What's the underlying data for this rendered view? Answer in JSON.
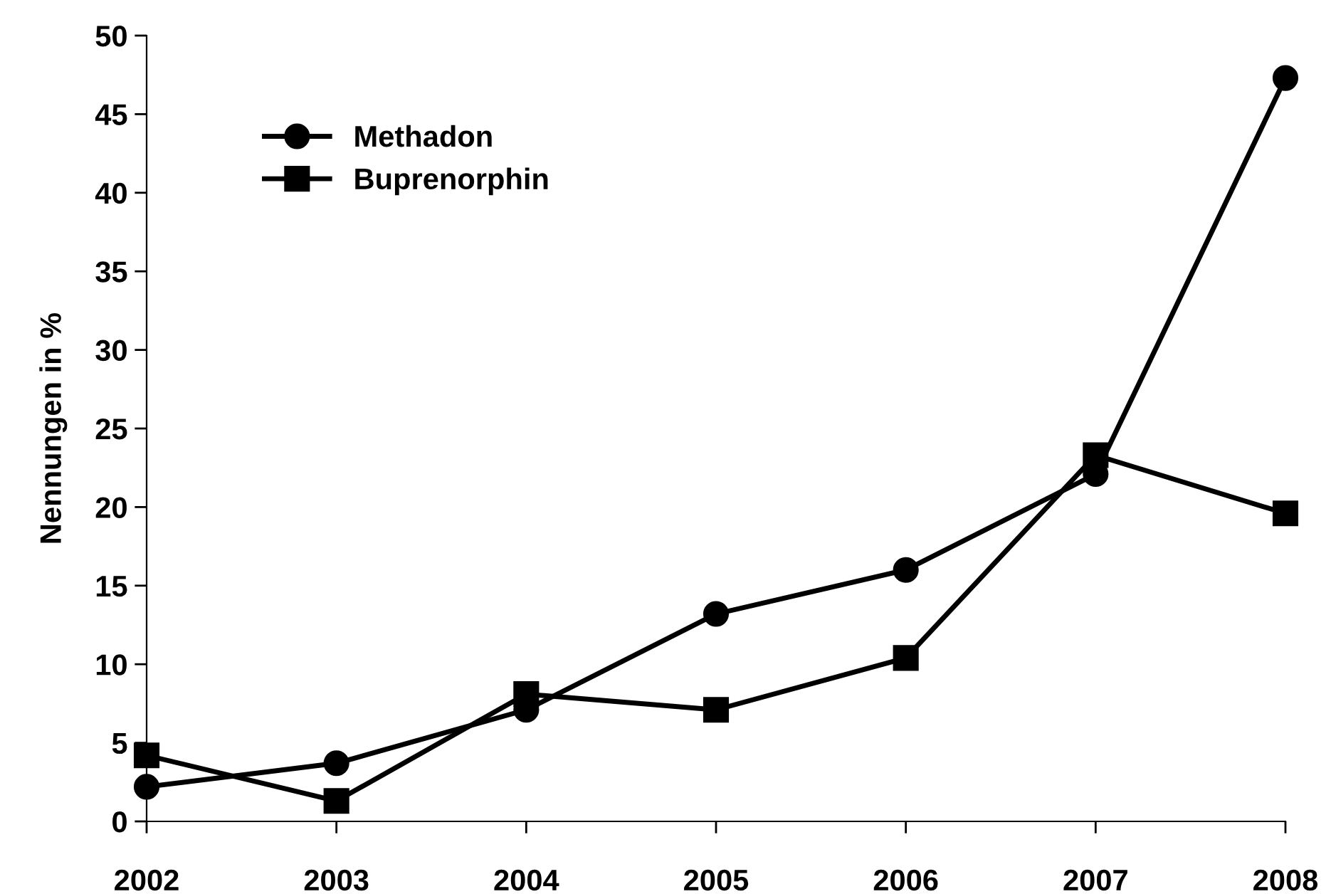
{
  "chart_data": {
    "type": "line",
    "ylabel": "Nennungen in %",
    "x": [
      2002,
      2003,
      2004,
      2005,
      2006,
      2007,
      2008
    ],
    "xlim": [
      2002,
      2008
    ],
    "xticks": [
      2002,
      2003,
      2004,
      2005,
      2006,
      2007,
      2008
    ],
    "ylim": [
      0,
      50
    ],
    "yticks": [
      0,
      5,
      10,
      15,
      20,
      25,
      30,
      35,
      40,
      45,
      50
    ],
    "series": [
      {
        "name": "Methadon",
        "color": "#000000",
        "marker": "circle",
        "values": [
          2.2,
          3.7,
          7.1,
          13.2,
          16.0,
          22.1,
          47.3
        ]
      },
      {
        "name": "Buprenorphin",
        "color": "#000000",
        "marker": "square",
        "values": [
          4.2,
          1.3,
          8.1,
          7.1,
          10.4,
          23.3,
          19.6
        ]
      }
    ],
    "line_style": "solid",
    "grid": false,
    "legend": "top left"
  }
}
